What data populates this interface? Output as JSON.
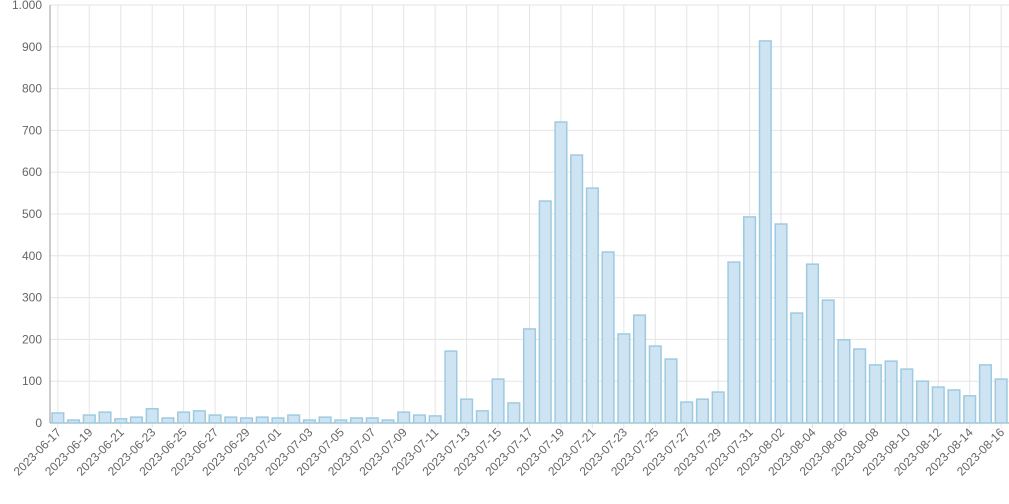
{
  "chart_data": {
    "type": "bar",
    "categories": [
      "2023-06-17",
      null,
      "2023-06-19",
      null,
      "2023-06-21",
      null,
      "2023-06-23",
      null,
      "2023-06-25",
      null,
      "2023-06-27",
      null,
      "2023-06-29",
      null,
      "2023-07-01",
      null,
      "2023-07-03",
      null,
      "2023-07-05",
      null,
      "2023-07-07",
      null,
      "2023-07-09",
      null,
      "2023-07-11",
      null,
      "2023-07-13",
      null,
      "2023-07-15",
      null,
      "2023-07-17",
      null,
      "2023-07-19",
      null,
      "2023-07-21",
      null,
      "2023-07-23",
      null,
      "2023-07-25",
      null,
      "2023-07-27",
      null,
      "2023-07-29",
      null,
      "2023-07-31",
      null,
      "2023-08-02",
      null,
      "2023-08-04",
      null,
      "2023-08-06",
      null,
      "2023-08-08",
      null,
      "2023-08-10",
      null,
      "2023-08-12",
      null,
      "2023-08-14",
      null,
      "2023-08-16"
    ],
    "values": [
      24,
      7,
      19,
      26,
      10,
      14,
      34,
      12,
      26,
      29,
      19,
      14,
      12,
      14,
      12,
      19,
      7,
      14,
      7,
      12,
      12,
      7,
      26,
      19,
      17,
      172,
      57,
      29,
      105,
      48,
      225,
      531,
      720,
      641,
      562,
      409,
      213,
      258,
      184,
      153,
      50,
      57,
      74,
      385,
      493,
      914,
      476,
      263,
      380,
      294,
      199,
      177,
      139,
      148,
      129,
      100,
      86,
      79,
      65,
      139,
      105
    ],
    "color": "#cfe4f2",
    "ylim": [
      0,
      1000
    ],
    "yticks": [
      0,
      100,
      200,
      300,
      400,
      500,
      600,
      700,
      800,
      900,
      {
        "value": 1000,
        "label": "1.000"
      }
    ],
    "grid": true
  }
}
